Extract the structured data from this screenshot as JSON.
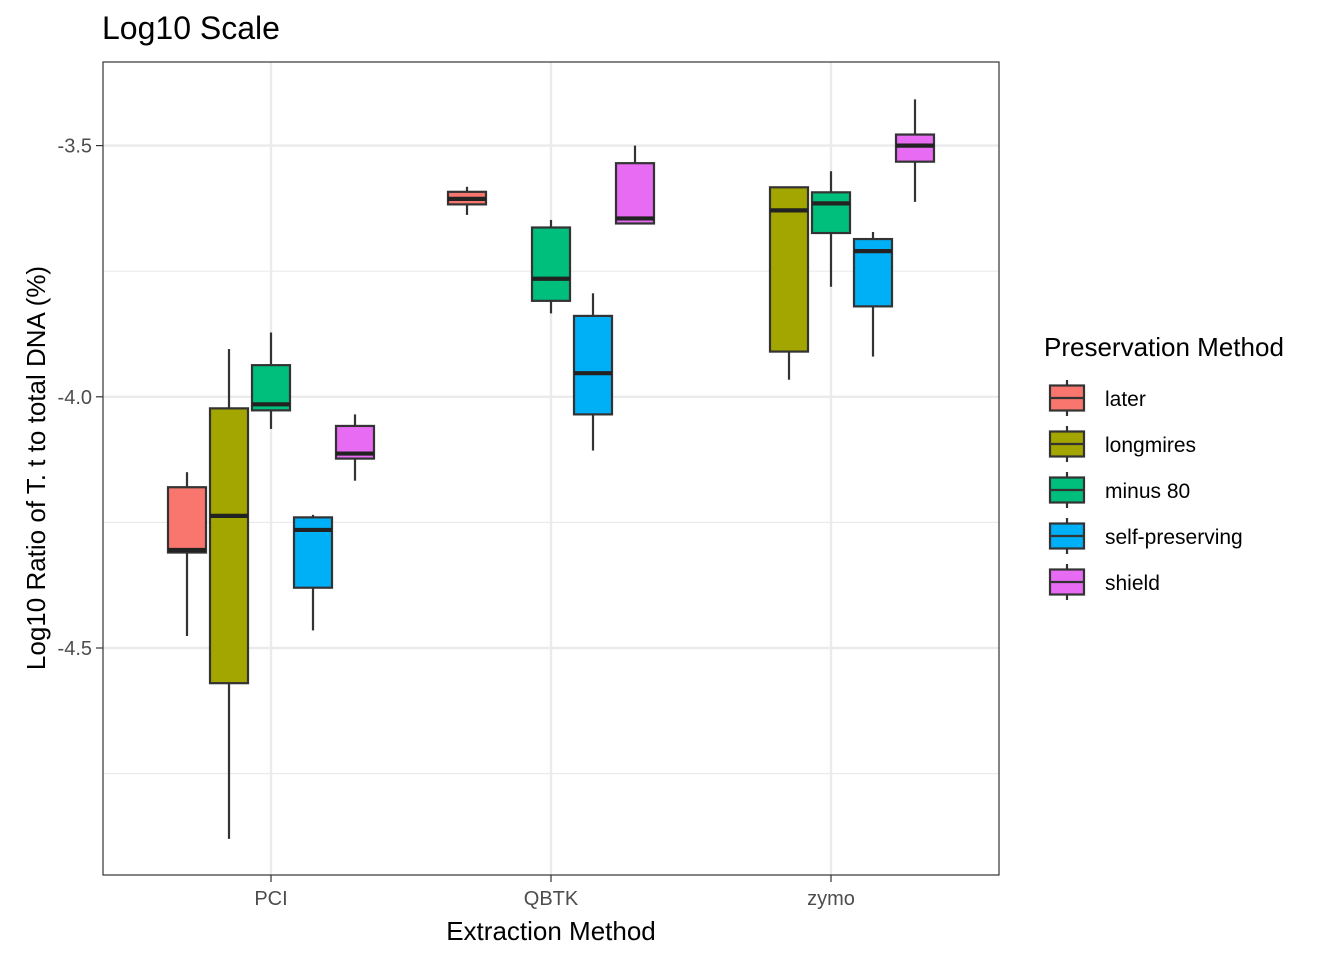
{
  "chart_data": {
    "type": "boxplot",
    "title": "Log10 Scale",
    "xlabel": "Extraction Method",
    "ylabel": "Log10 Ratio of T. t to total DNA (%)",
    "categories": [
      "PCI",
      "QBTK",
      "zymo"
    ],
    "yticks": [
      "-3.5",
      "-4.0",
      "-4.5"
    ],
    "ytick_values": [
      -3.5,
      -4.0,
      -4.5
    ],
    "ylim": [
      -4.95,
      -3.33
    ],
    "grid": true,
    "legend": {
      "title": "Preservation Method",
      "position": "right"
    },
    "series": [
      {
        "name": "later",
        "color": "#F8766D",
        "boxes": [
          {
            "category": "PCI",
            "min": -4.476,
            "q1": -4.31,
            "median": -4.305,
            "q3": -4.18,
            "max": -4.15
          },
          {
            "category": "QBTK",
            "min": -3.638,
            "q1": -3.617,
            "median": -3.606,
            "q3": -3.592,
            "max": -3.582
          }
        ]
      },
      {
        "name": "longmires",
        "color": "#A3A500",
        "boxes": [
          {
            "category": "PCI",
            "min": -4.88,
            "q1": -4.57,
            "median": -4.237,
            "q3": -4.023,
            "max": -3.905
          },
          {
            "category": "zymo",
            "min": -3.966,
            "q1": -3.91,
            "median": -3.629,
            "q3": -3.583,
            "max": -3.582
          }
        ]
      },
      {
        "name": "minus 80",
        "color": "#00BF7D",
        "boxes": [
          {
            "category": "PCI",
            "min": -4.064,
            "q1": -4.027,
            "median": -4.015,
            "q3": -3.937,
            "max": -3.872
          },
          {
            "category": "QBTK",
            "min": -3.834,
            "q1": -3.809,
            "median": -3.765,
            "q3": -3.663,
            "max": -3.648
          },
          {
            "category": "zymo",
            "min": -3.781,
            "q1": -3.674,
            "median": -3.615,
            "q3": -3.593,
            "max": -3.551
          }
        ]
      },
      {
        "name": "self-preserving",
        "color": "#00B0F6",
        "boxes": [
          {
            "category": "PCI",
            "min": -4.465,
            "q1": -4.38,
            "median": -4.265,
            "q3": -4.24,
            "max": -4.235
          },
          {
            "category": "QBTK",
            "min": -4.107,
            "q1": -4.035,
            "median": -3.953,
            "q3": -3.839,
            "max": -3.794
          },
          {
            "category": "zymo",
            "min": -3.92,
            "q1": -3.82,
            "median": -3.71,
            "q3": -3.686,
            "max": -3.672
          }
        ]
      },
      {
        "name": "shield",
        "color": "#E76BF3",
        "boxes": [
          {
            "category": "PCI",
            "min": -4.167,
            "q1": -4.123,
            "median": -4.113,
            "q3": -4.058,
            "max": -4.035
          },
          {
            "category": "QBTK",
            "min": -3.657,
            "q1": -3.655,
            "median": -3.645,
            "q3": -3.535,
            "max": -3.5
          },
          {
            "category": "zymo",
            "min": -3.612,
            "q1": -3.532,
            "median": -3.5,
            "q3": -3.478,
            "max": -3.408
          }
        ]
      }
    ]
  }
}
